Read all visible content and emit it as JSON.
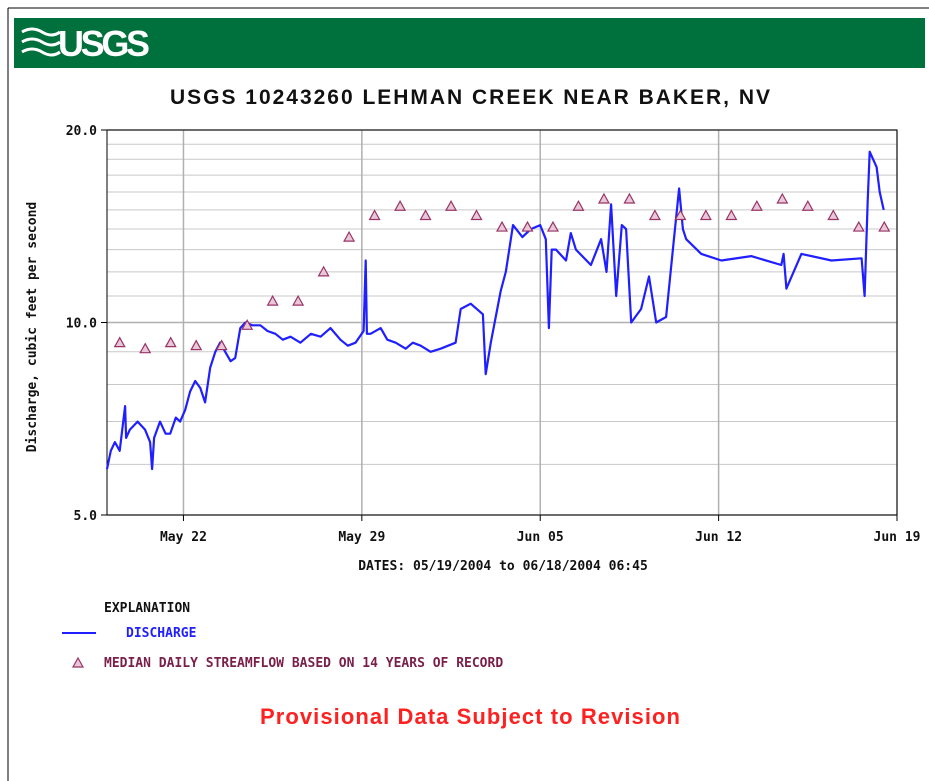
{
  "logo": "USGS",
  "chart_data": {
    "type": "line",
    "title": "USGS 10243260 LEHMAN CREEK NEAR BAKER, NV",
    "ylabel": "Discharge, cubic feet per second",
    "xlabel": "DATES: 05/19/2004 to 06/18/2004 06:45",
    "legend_title": "EXPLANATION",
    "note": "Provisional Data Subject to Revision",
    "log_y": true,
    "grid": true,
    "ylim": [
      5,
      20
    ],
    "yticks": [
      {
        "value": 5,
        "label": "5.0"
      },
      {
        "value": 10,
        "label": "10.0"
      },
      {
        "value": 20,
        "label": "20.0"
      }
    ],
    "minor_yticks": [
      6,
      7,
      8,
      9,
      11,
      12,
      13,
      14,
      15,
      16,
      17,
      18,
      19
    ],
    "xlim": [
      0,
      31
    ],
    "xticks": [
      {
        "value": 3,
        "label": "May 22"
      },
      {
        "value": 10,
        "label": "May 29"
      },
      {
        "value": 17,
        "label": "Jun 05"
      },
      {
        "value": 24,
        "label": "Jun 12"
      },
      {
        "value": 31,
        "label": "Jun 19"
      }
    ],
    "series": [
      {
        "name": "DISCHARGE",
        "color": "#1f1fff",
        "marker": "line",
        "x": [
          0,
          0.15,
          0.31,
          0.5,
          0.71,
          0.75,
          0.9,
          1.2,
          1.49,
          1.69,
          1.77,
          1.85,
          2.08,
          2.3,
          2.48,
          2.7,
          2.87,
          3.07,
          3.26,
          3.46,
          3.66,
          3.85,
          4.05,
          4.25,
          4.44,
          4.64,
          4.85,
          5.03,
          5.23,
          5.43,
          5.7,
          6.02,
          6.3,
          6.61,
          6.9,
          7.2,
          7.59,
          8.0,
          8.38,
          8.77,
          9.16,
          9.45,
          9.75,
          10.07,
          10.15,
          10.2,
          10.34,
          10.74,
          11.0,
          11.33,
          11.72,
          12.0,
          12.31,
          12.7,
          13.09,
          13.68,
          13.88,
          14.27,
          14.75,
          14.86,
          15.06,
          15.45,
          15.65,
          15.93,
          16.3,
          16.63,
          17.0,
          17.22,
          17.34,
          17.45,
          17.62,
          18.01,
          18.2,
          18.4,
          18.99,
          19.39,
          19.6,
          19.78,
          19.98,
          20.2,
          20.37,
          20.57,
          20.96,
          21.27,
          21.55,
          21.94,
          22.22,
          22.45,
          22.6,
          22.73,
          23.32,
          24.11,
          25.28,
          26.46,
          26.55,
          26.66,
          27.25,
          28.43,
          29.61,
          29.73,
          29.85,
          29.93,
          30.2,
          30.32,
          30.48
        ],
        "values": [
          5.9,
          6.3,
          6.5,
          6.3,
          7.4,
          6.6,
          6.8,
          7.0,
          6.8,
          6.5,
          5.9,
          6.6,
          7.0,
          6.7,
          6.7,
          7.1,
          7.0,
          7.3,
          7.8,
          8.1,
          7.9,
          7.5,
          8.5,
          9.0,
          9.3,
          9.0,
          8.7,
          8.8,
          9.8,
          10.0,
          9.9,
          9.9,
          9.7,
          9.6,
          9.4,
          9.5,
          9.3,
          9.6,
          9.5,
          9.8,
          9.4,
          9.2,
          9.3,
          9.7,
          12.5,
          9.6,
          9.6,
          9.8,
          9.4,
          9.3,
          9.1,
          9.3,
          9.2,
          9.0,
          9.1,
          9.3,
          10.5,
          10.7,
          10.3,
          8.3,
          9.3,
          11.2,
          12.0,
          14.2,
          13.6,
          14.0,
          14.2,
          13.5,
          9.8,
          13.0,
          13.0,
          12.5,
          13.8,
          13.0,
          12.3,
          13.5,
          12.0,
          15.3,
          11.0,
          14.2,
          14.0,
          10.0,
          10.5,
          11.8,
          10.0,
          10.2,
          13.2,
          16.2,
          14.0,
          13.5,
          12.8,
          12.5,
          12.7,
          12.3,
          12.8,
          11.3,
          12.8,
          12.5,
          12.6,
          11.0,
          15.5,
          18.5,
          17.5,
          16.0,
          15.0
        ]
      },
      {
        "name": "MEDIAN DAILY STREAMFLOW BASED ON 14 YEARS OF RECORD",
        "color": "#993366",
        "marker": "triangle",
        "x": [
          0.5,
          1.5,
          2.5,
          3.5,
          4.5,
          5.5,
          6.5,
          7.5,
          8.5,
          9.5,
          10.5,
          11.5,
          12.5,
          13.5,
          14.5,
          15.5,
          16.5,
          17.5,
          18.5,
          19.5,
          20.5,
          21.5,
          22.5,
          23.5,
          24.5,
          25.5,
          26.5,
          27.5,
          28.5,
          29.5,
          30.5
        ],
        "values": [
          9.3,
          9.1,
          9.3,
          9.2,
          9.2,
          9.9,
          10.8,
          10.8,
          12.0,
          13.6,
          14.7,
          15.2,
          14.7,
          15.2,
          14.7,
          14.1,
          14.1,
          14.1,
          15.2,
          15.6,
          15.6,
          14.7,
          14.7,
          14.7,
          14.7,
          15.2,
          15.6,
          15.2,
          14.7,
          14.1,
          14.1
        ]
      }
    ]
  }
}
